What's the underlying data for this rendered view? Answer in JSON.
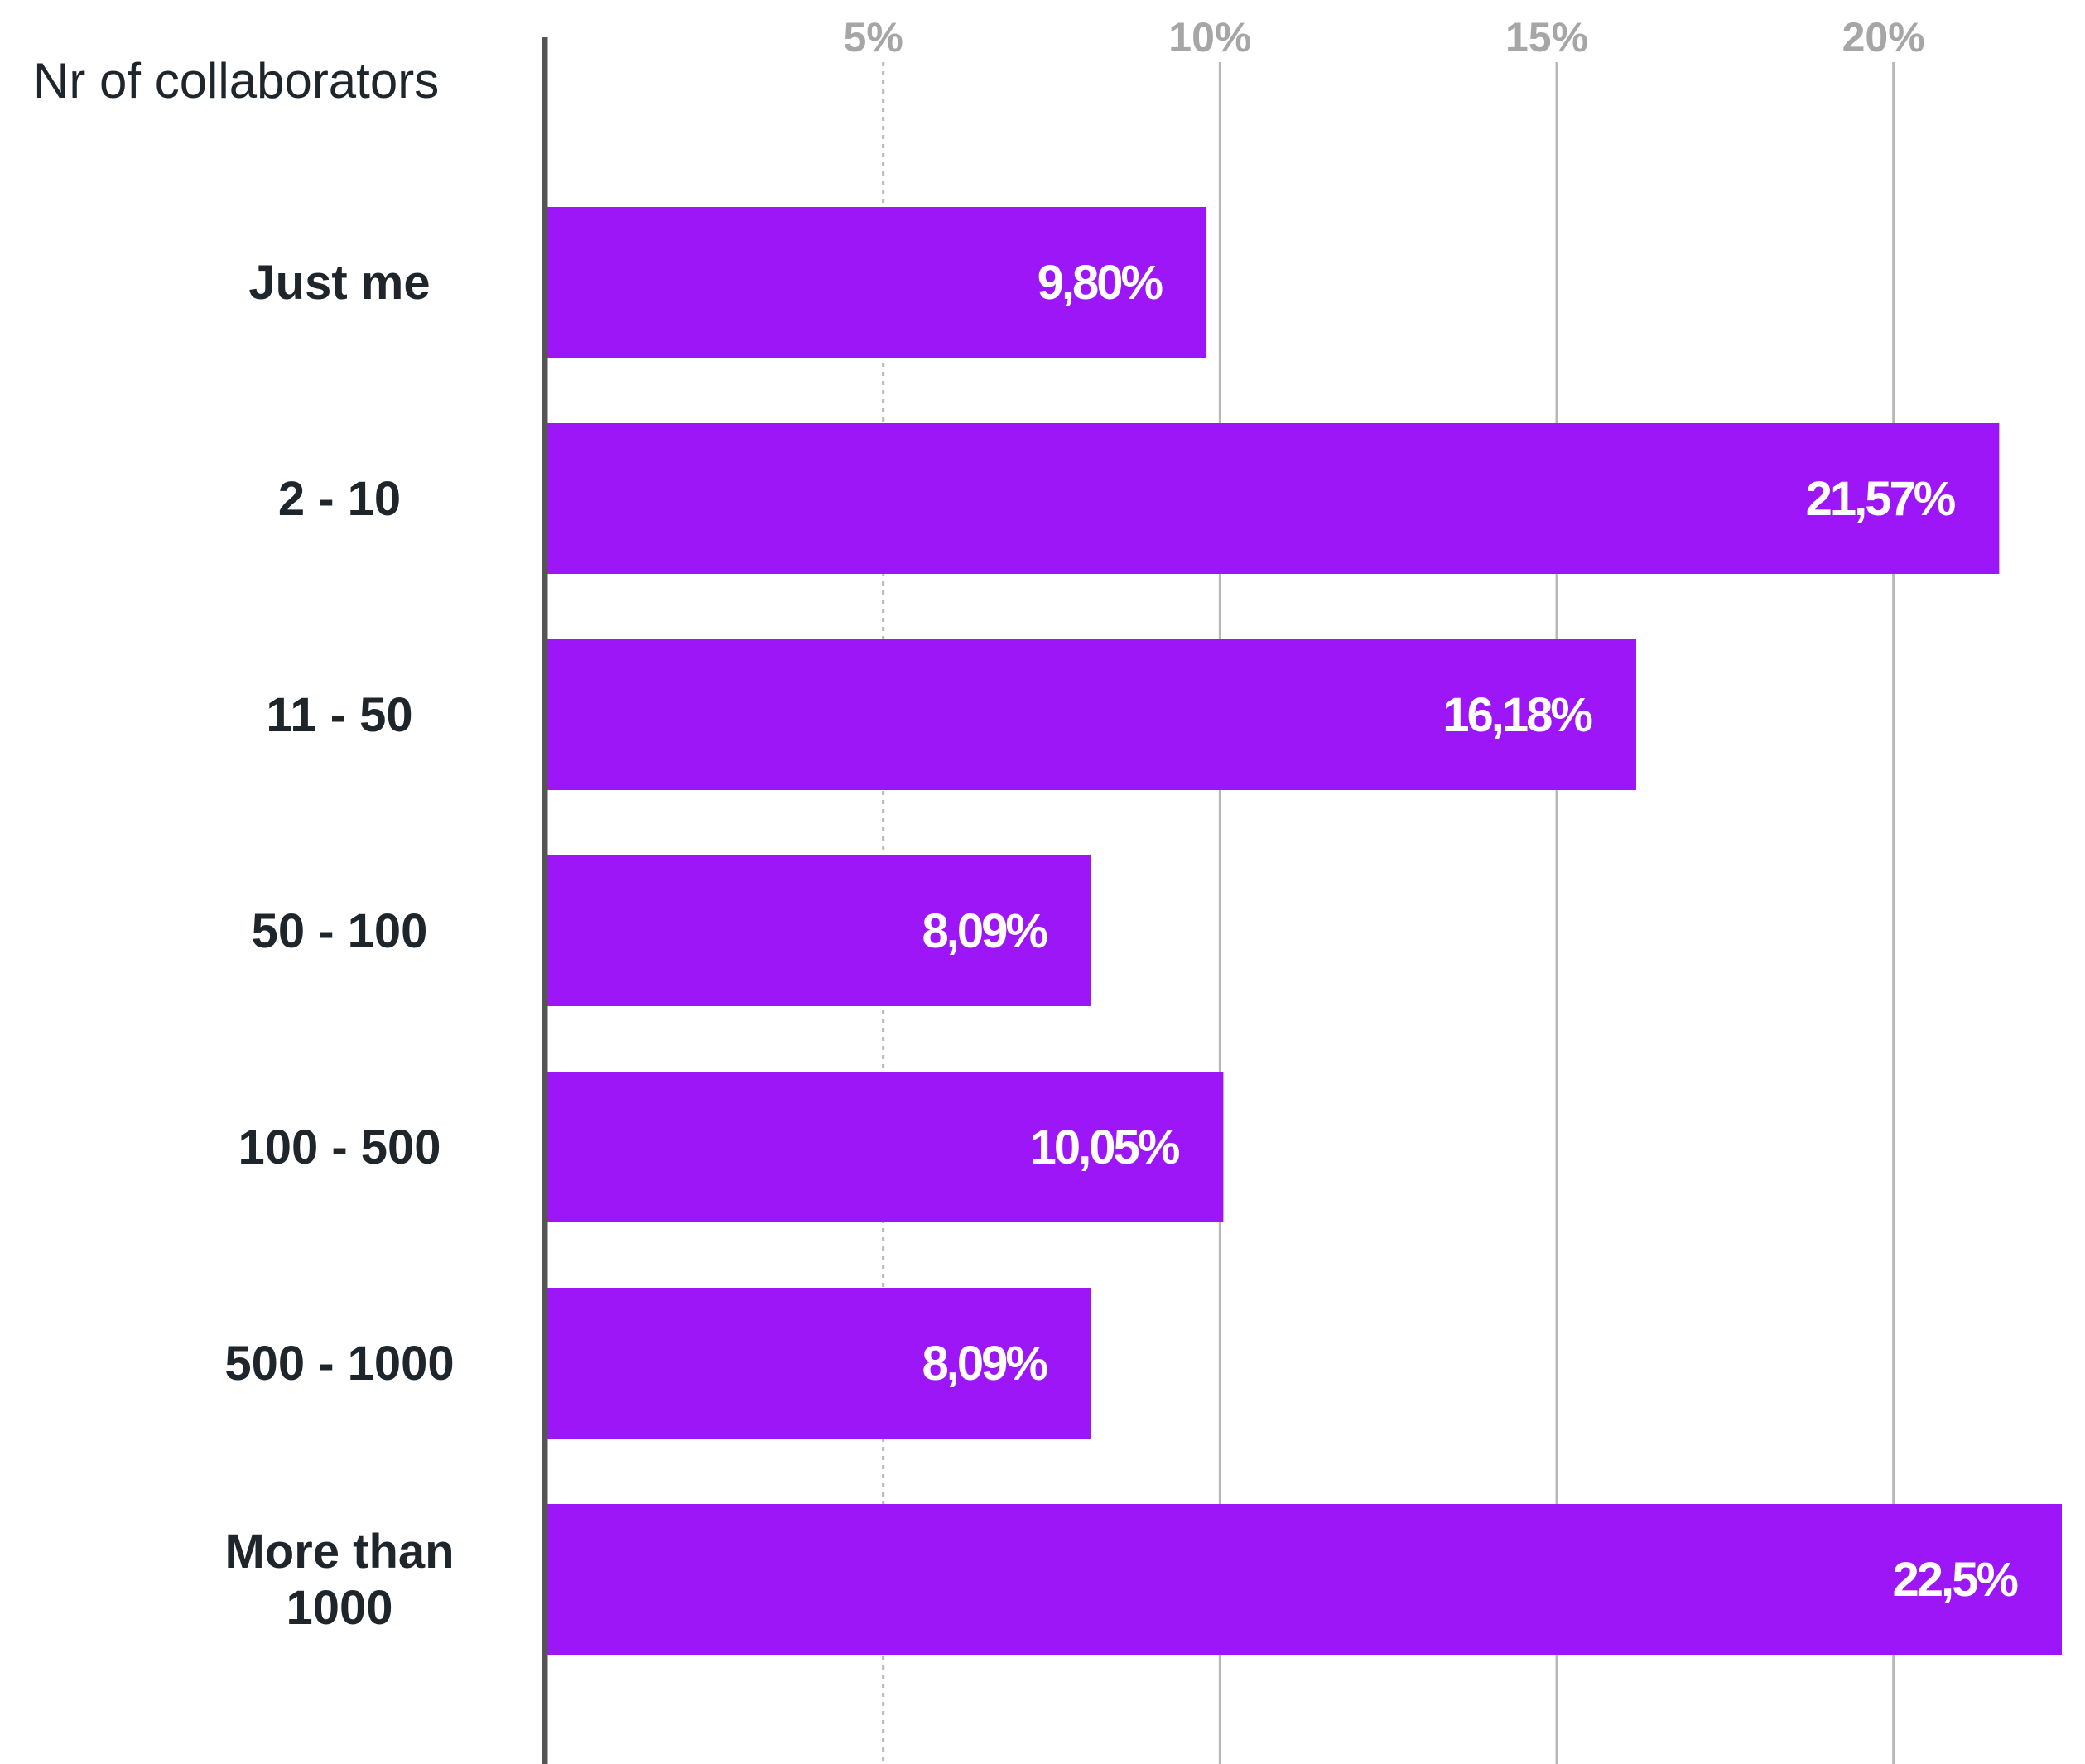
{
  "chart_data": {
    "type": "bar",
    "orientation": "horizontal",
    "title": "",
    "ylabel": "Nr of collaborators",
    "xlabel": "",
    "categories": [
      [
        "Just me"
      ],
      [
        "2 - 10"
      ],
      [
        "11 - 50"
      ],
      [
        "50 - 100"
      ],
      [
        "100 - 500"
      ],
      [
        "500 - 1000"
      ],
      [
        "More than",
        "1000"
      ]
    ],
    "values": [
      9.8,
      21.57,
      16.18,
      8.09,
      10.05,
      8.09,
      22.5
    ],
    "value_labels": [
      "9,80%",
      "21,57%",
      "16,18%",
      "8,09%",
      "10,05%",
      "8,09%",
      "22,5%"
    ],
    "xticks": [
      {
        "value": 5,
        "label": "5%"
      },
      {
        "value": 10,
        "label": "10%"
      },
      {
        "value": 15,
        "label": "15%"
      },
      {
        "value": 20,
        "label": "20%"
      }
    ],
    "xlim": [
      0,
      22.5
    ],
    "grid": true,
    "legend": "none",
    "bar_color": "#9d16f7",
    "axis_color": "#555555",
    "grid_color": "#b8b8b8"
  }
}
